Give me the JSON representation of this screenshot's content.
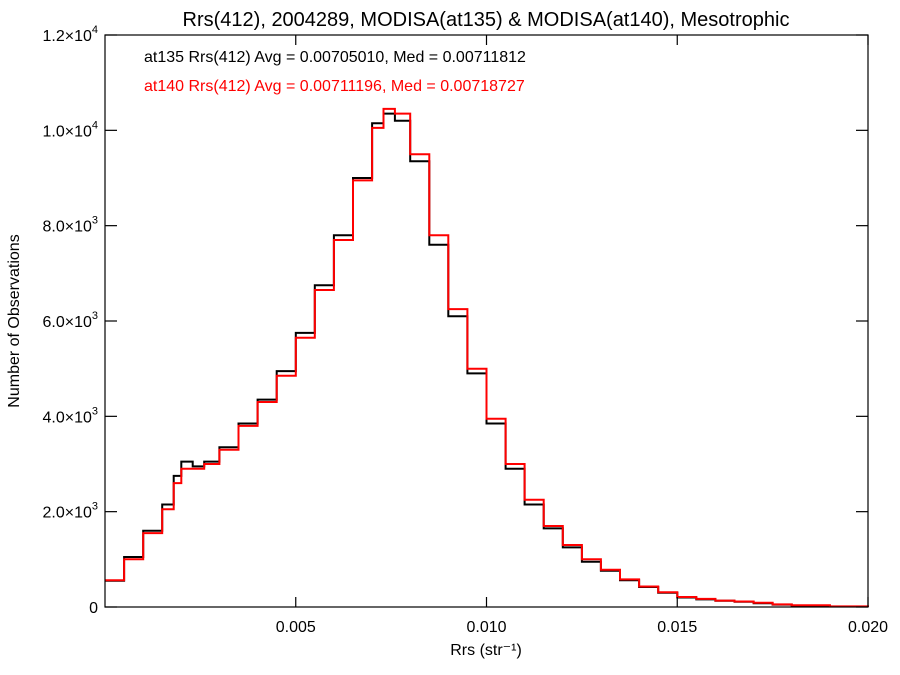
{
  "chart_data": {
    "type": "line",
    "step": true,
    "title": "Rrs(412), 2004289, MODISA(at135) & MODISA(at140), Mesotrophic",
    "xlabel": "Rrs (str⁻¹)",
    "ylabel": "Number of Observations",
    "xlim": [
      0.0,
      0.02
    ],
    "ylim": [
      0,
      12000
    ],
    "x_ticks": [
      {
        "value": 0.005,
        "label": "0.005"
      },
      {
        "value": 0.01,
        "label": "0.010"
      },
      {
        "value": 0.015,
        "label": "0.015"
      },
      {
        "value": 0.02,
        "label": "0.020"
      }
    ],
    "y_ticks": [
      {
        "value": 0,
        "mant": "0",
        "exp": ""
      },
      {
        "value": 2000,
        "mant": "2.0×10",
        "exp": "3"
      },
      {
        "value": 4000,
        "mant": "4.0×10",
        "exp": "3"
      },
      {
        "value": 6000,
        "mant": "6.0×10",
        "exp": "3"
      },
      {
        "value": 8000,
        "mant": "8.0×10",
        "exp": "3"
      },
      {
        "value": 10000,
        "mant": "1.0×10",
        "exp": "4"
      },
      {
        "value": 12000,
        "mant": "1.2×10",
        "exp": "4"
      }
    ],
    "grid": false,
    "legend_position": "top-left",
    "series": [
      {
        "name": "at135",
        "color": "#000000",
        "legend": "at135 Rrs(412) Avg = 0.00705010, Med = 0.00711812",
        "x": [
          0.0,
          0.0005,
          0.001,
          0.0015,
          0.0018,
          0.002,
          0.0023,
          0.0026,
          0.003,
          0.0035,
          0.004,
          0.0045,
          0.005,
          0.0055,
          0.006,
          0.0065,
          0.007,
          0.0073,
          0.0076,
          0.008,
          0.0085,
          0.009,
          0.0095,
          0.01,
          0.0105,
          0.011,
          0.0115,
          0.012,
          0.0125,
          0.013,
          0.0135,
          0.014,
          0.0145,
          0.015,
          0.0155,
          0.016,
          0.0165,
          0.017,
          0.0175,
          0.018,
          0.019,
          0.02
        ],
        "y": [
          550,
          1050,
          1600,
          2150,
          2750,
          3050,
          2950,
          3050,
          3350,
          3850,
          4350,
          4950,
          5750,
          6750,
          7800,
          9000,
          10150,
          10350,
          10200,
          9350,
          7600,
          6100,
          4900,
          3850,
          2900,
          2150,
          1650,
          1250,
          950,
          760,
          560,
          420,
          300,
          200,
          160,
          130,
          110,
          80,
          50,
          30,
          10,
          0
        ]
      },
      {
        "name": "at140",
        "color": "#ff0000",
        "legend": "at140 Rrs(412) Avg = 0.00711196, Med = 0.00718727",
        "x": [
          0.0,
          0.0005,
          0.001,
          0.0015,
          0.0018,
          0.002,
          0.0023,
          0.0026,
          0.003,
          0.0035,
          0.004,
          0.0045,
          0.005,
          0.0055,
          0.006,
          0.0065,
          0.007,
          0.0073,
          0.0076,
          0.008,
          0.0085,
          0.009,
          0.0095,
          0.01,
          0.0105,
          0.011,
          0.0115,
          0.012,
          0.0125,
          0.013,
          0.0135,
          0.014,
          0.0145,
          0.015,
          0.0155,
          0.016,
          0.0165,
          0.017,
          0.0175,
          0.018,
          0.019,
          0.02
        ],
        "y": [
          560,
          1000,
          1550,
          2050,
          2600,
          2900,
          2900,
          3000,
          3300,
          3800,
          4300,
          4850,
          5650,
          6650,
          7700,
          8950,
          10050,
          10450,
          10350,
          9500,
          7800,
          6250,
          5000,
          3950,
          3000,
          2250,
          1700,
          1300,
          1000,
          780,
          580,
          430,
          310,
          210,
          170,
          135,
          115,
          90,
          55,
          35,
          12,
          0
        ]
      }
    ]
  }
}
